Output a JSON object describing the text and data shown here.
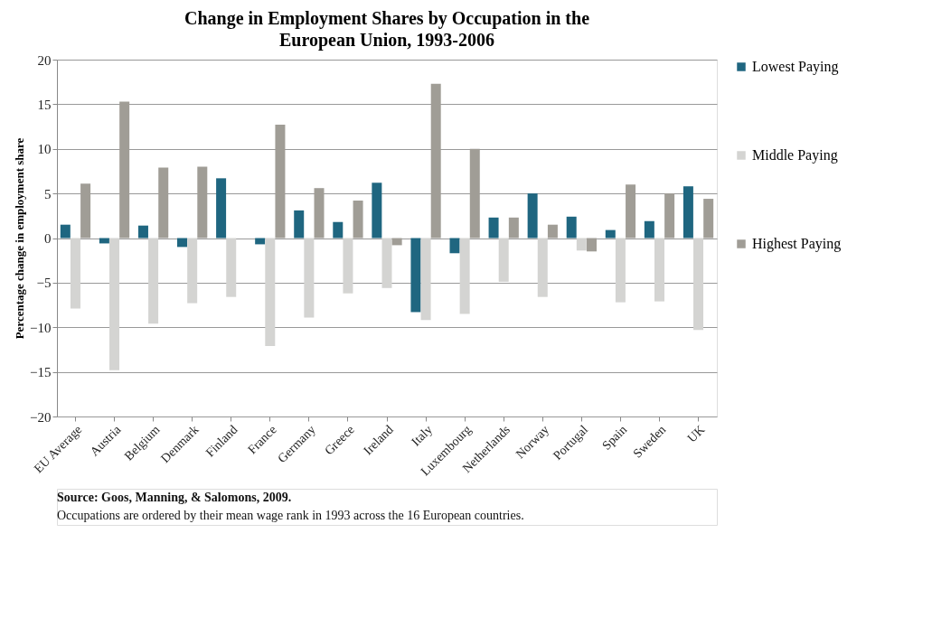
{
  "chart_data": {
    "type": "bar",
    "title": "Change in Employment Shares by Occupation in the European Union, 1993-2006",
    "ylabel": "Percentage change in employment share",
    "categories": [
      "EU Average",
      "Austria",
      "Belgium",
      "Denmark",
      "Finland",
      "France",
      "Germany",
      "Greece",
      "Ireland",
      "Italy",
      "Luxembourg",
      "Netherlands",
      "Norway",
      "Portugal",
      "Spain",
      "Sweden",
      "UK"
    ],
    "series": [
      {
        "name": "Lowest Paying",
        "color": "#1f6680",
        "values": [
          1.5,
          -0.6,
          1.4,
          -1.0,
          6.7,
          -0.7,
          3.1,
          1.8,
          6.2,
          -8.3,
          -1.7,
          2.3,
          5.0,
          2.4,
          0.9,
          1.9,
          5.8
        ]
      },
      {
        "name": "Middle Paying",
        "color": "#d4d4d2",
        "values": [
          -7.9,
          -14.8,
          -9.6,
          -7.3,
          -6.6,
          -12.1,
          -8.9,
          -6.2,
          -5.6,
          -9.2,
          -8.5,
          -4.9,
          -6.6,
          -1.4,
          -7.2,
          -7.1,
          -10.3
        ]
      },
      {
        "name": "Highest Paying",
        "color": "#a09d96",
        "values": [
          6.1,
          15.3,
          7.9,
          8.0,
          0.0,
          12.7,
          5.6,
          4.2,
          -0.8,
          17.3,
          10.0,
          2.3,
          1.5,
          -1.5,
          6.0,
          5.0,
          4.4
        ]
      }
    ],
    "ylim": [
      -20,
      20
    ],
    "yticks": [
      -20,
      -15,
      -10,
      -5,
      0,
      5,
      10,
      15,
      20
    ],
    "grid": "y",
    "legend": "right",
    "annotations": [
      "Source: Goos, Manning, & Salomons, 2009.",
      "Occupations are ordered by their mean wage rank in 1993 across the 16 European countries."
    ]
  }
}
